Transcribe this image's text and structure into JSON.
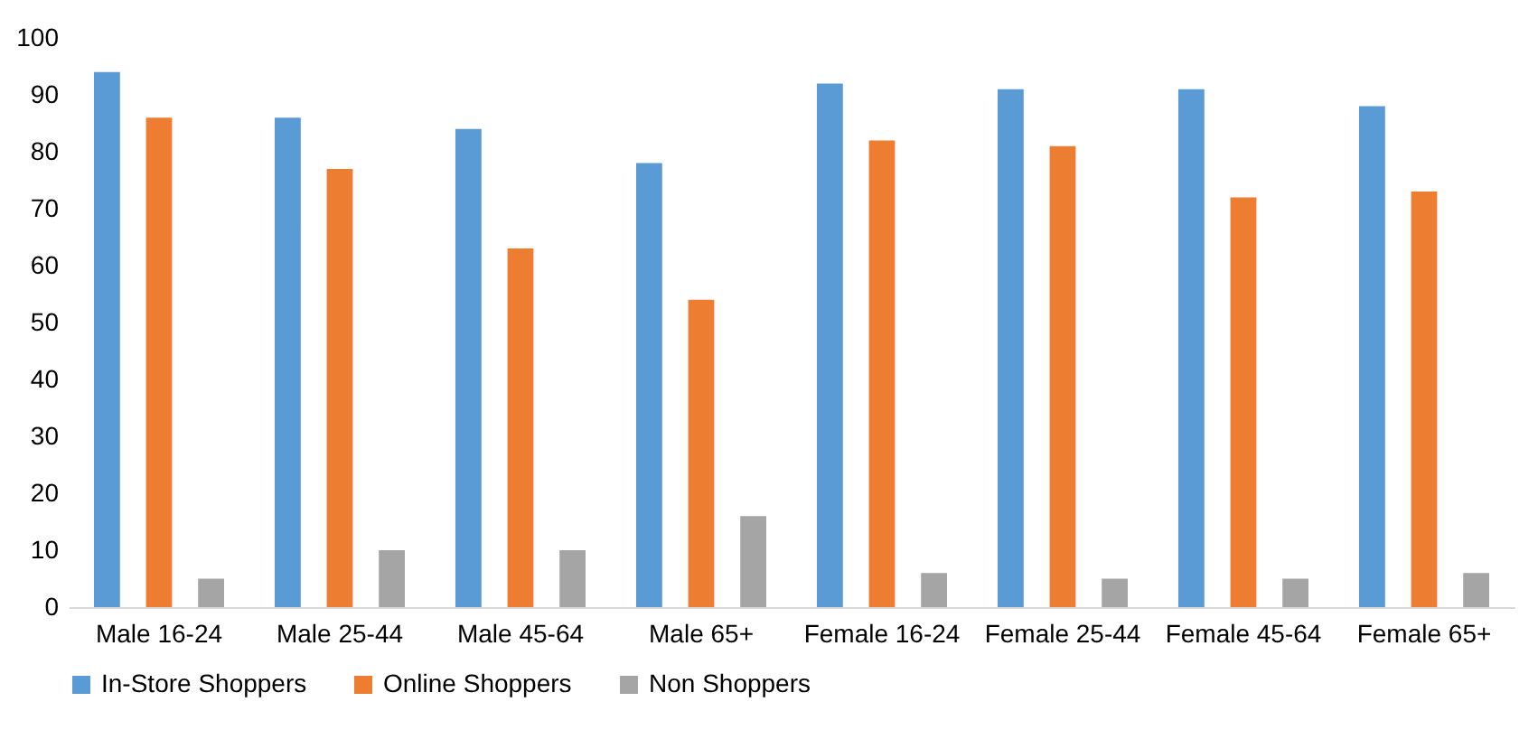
{
  "chart_data": {
    "type": "bar",
    "categories": [
      "Male 16-24",
      "Male 25-44",
      "Male 45-64",
      "Male 65+",
      "Female 16-24",
      "Female 25-44",
      "Female 45-64",
      "Female 65+"
    ],
    "series": [
      {
        "name": "In-Store Shoppers",
        "color": "#5b9bd5",
        "values": [
          94,
          86,
          84,
          78,
          92,
          91,
          91,
          88
        ]
      },
      {
        "name": "Online Shoppers",
        "color": "#ed7d31",
        "values": [
          86,
          77,
          63,
          54,
          82,
          81,
          72,
          73
        ]
      },
      {
        "name": "Non Shoppers",
        "color": "#a5a5a5",
        "values": [
          5,
          10,
          10,
          16,
          6,
          5,
          5,
          6
        ]
      }
    ],
    "ylim": [
      0,
      100
    ],
    "yticks": [
      0,
      10,
      20,
      30,
      40,
      50,
      60,
      70,
      80,
      90,
      100
    ],
    "grid": false,
    "legend": "bottom"
  }
}
